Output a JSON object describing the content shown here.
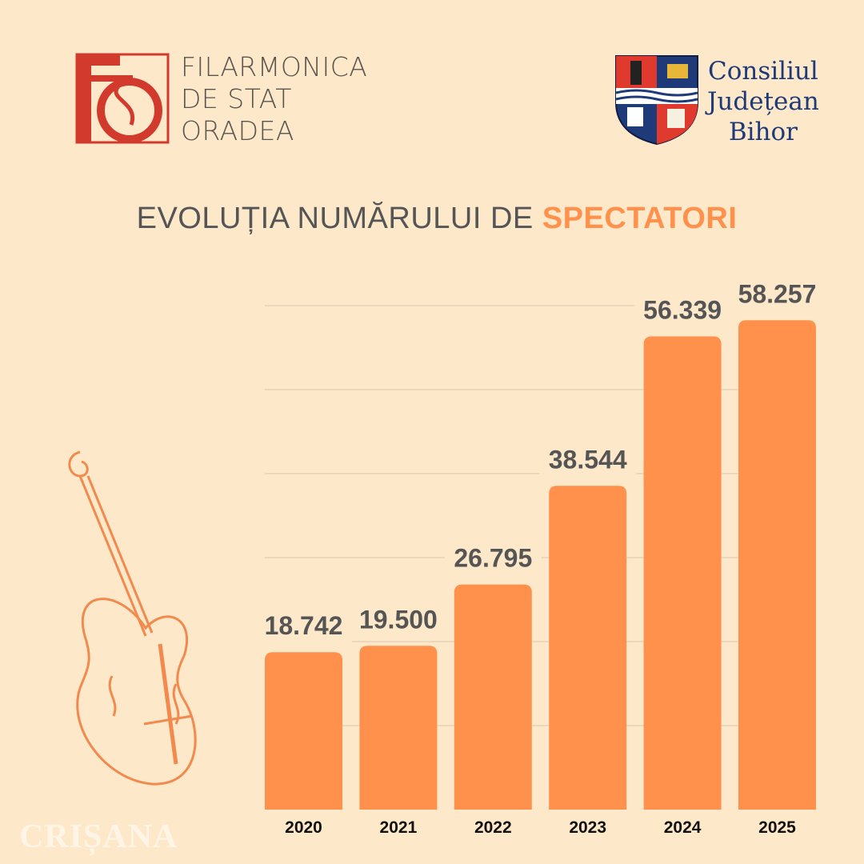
{
  "logos": {
    "filarmonica": {
      "lines": [
        "FILARMONICA",
        "DE STAT",
        "ORADEA"
      ],
      "color": "#d13a2c"
    },
    "consiliul": {
      "lines": [
        "Consiliul",
        "Județean",
        "Bihor"
      ],
      "color": "#1f3a78"
    }
  },
  "title": {
    "main": "EVOLUȚIA NUMĂRULUI DE ",
    "highlight": "SPECTATORI"
  },
  "watermark": "CRIȘANA",
  "colors": {
    "background": "#fde8c9",
    "bar": "#ff914d",
    "highlight": "#ff914d"
  },
  "chart_data": {
    "type": "bar",
    "categories": [
      "2020",
      "2021",
      "2022",
      "2023",
      "2024",
      "2025"
    ],
    "values": [
      18742,
      19500,
      26795,
      38544,
      56339,
      58257
    ],
    "labels": [
      "18.742",
      "19.500",
      "26.795",
      "38.544",
      "56.339",
      "58.257"
    ],
    "title": "EVOLUȚIA NUMĂRULUI DE SPECTATORI",
    "ylim": [
      0,
      60000
    ],
    "grid": true,
    "gridStep": 10000
  }
}
